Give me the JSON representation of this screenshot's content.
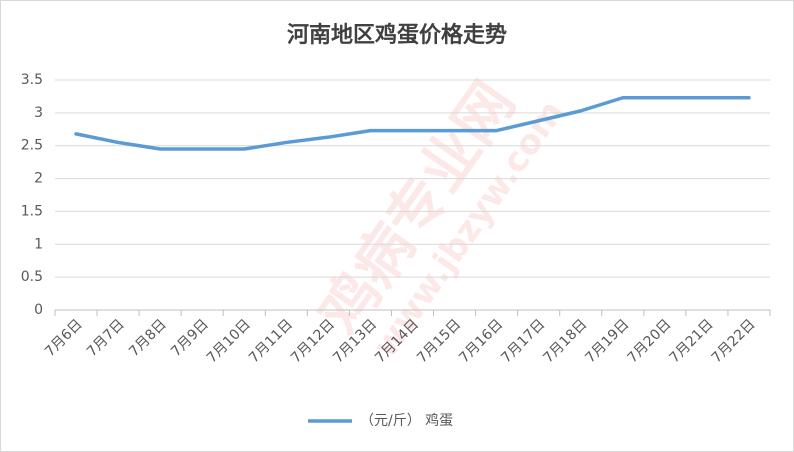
{
  "chart_data": {
    "type": "line",
    "title": "河南地区鸡蛋价格走势",
    "categories": [
      "7月6日",
      "7月7日",
      "7月8日",
      "7月9日",
      "7月10日",
      "7月11日",
      "7月12日",
      "7月13日",
      "7月14日",
      "7月15日",
      "7月16日",
      "7月17日",
      "7月18日",
      "7月19日",
      "7月20日",
      "7月21日",
      "7月22日"
    ],
    "series": [
      {
        "name": "（元/斤） 鸡蛋",
        "color": "#5b9bd5",
        "values": [
          2.68,
          2.55,
          2.45,
          2.45,
          2.45,
          2.55,
          2.63,
          2.73,
          2.73,
          2.73,
          2.73,
          2.88,
          3.03,
          3.23,
          3.23,
          3.23,
          3.23
        ]
      }
    ],
    "ylim": [
      0,
      3.5
    ],
    "yticks": [
      0,
      0.5,
      1,
      1.5,
      2,
      2.5,
      3,
      3.5
    ],
    "grid": true,
    "legend": "bottom",
    "watermark": [
      "鸡病专业网",
      "www.jbzyw.com"
    ]
  }
}
